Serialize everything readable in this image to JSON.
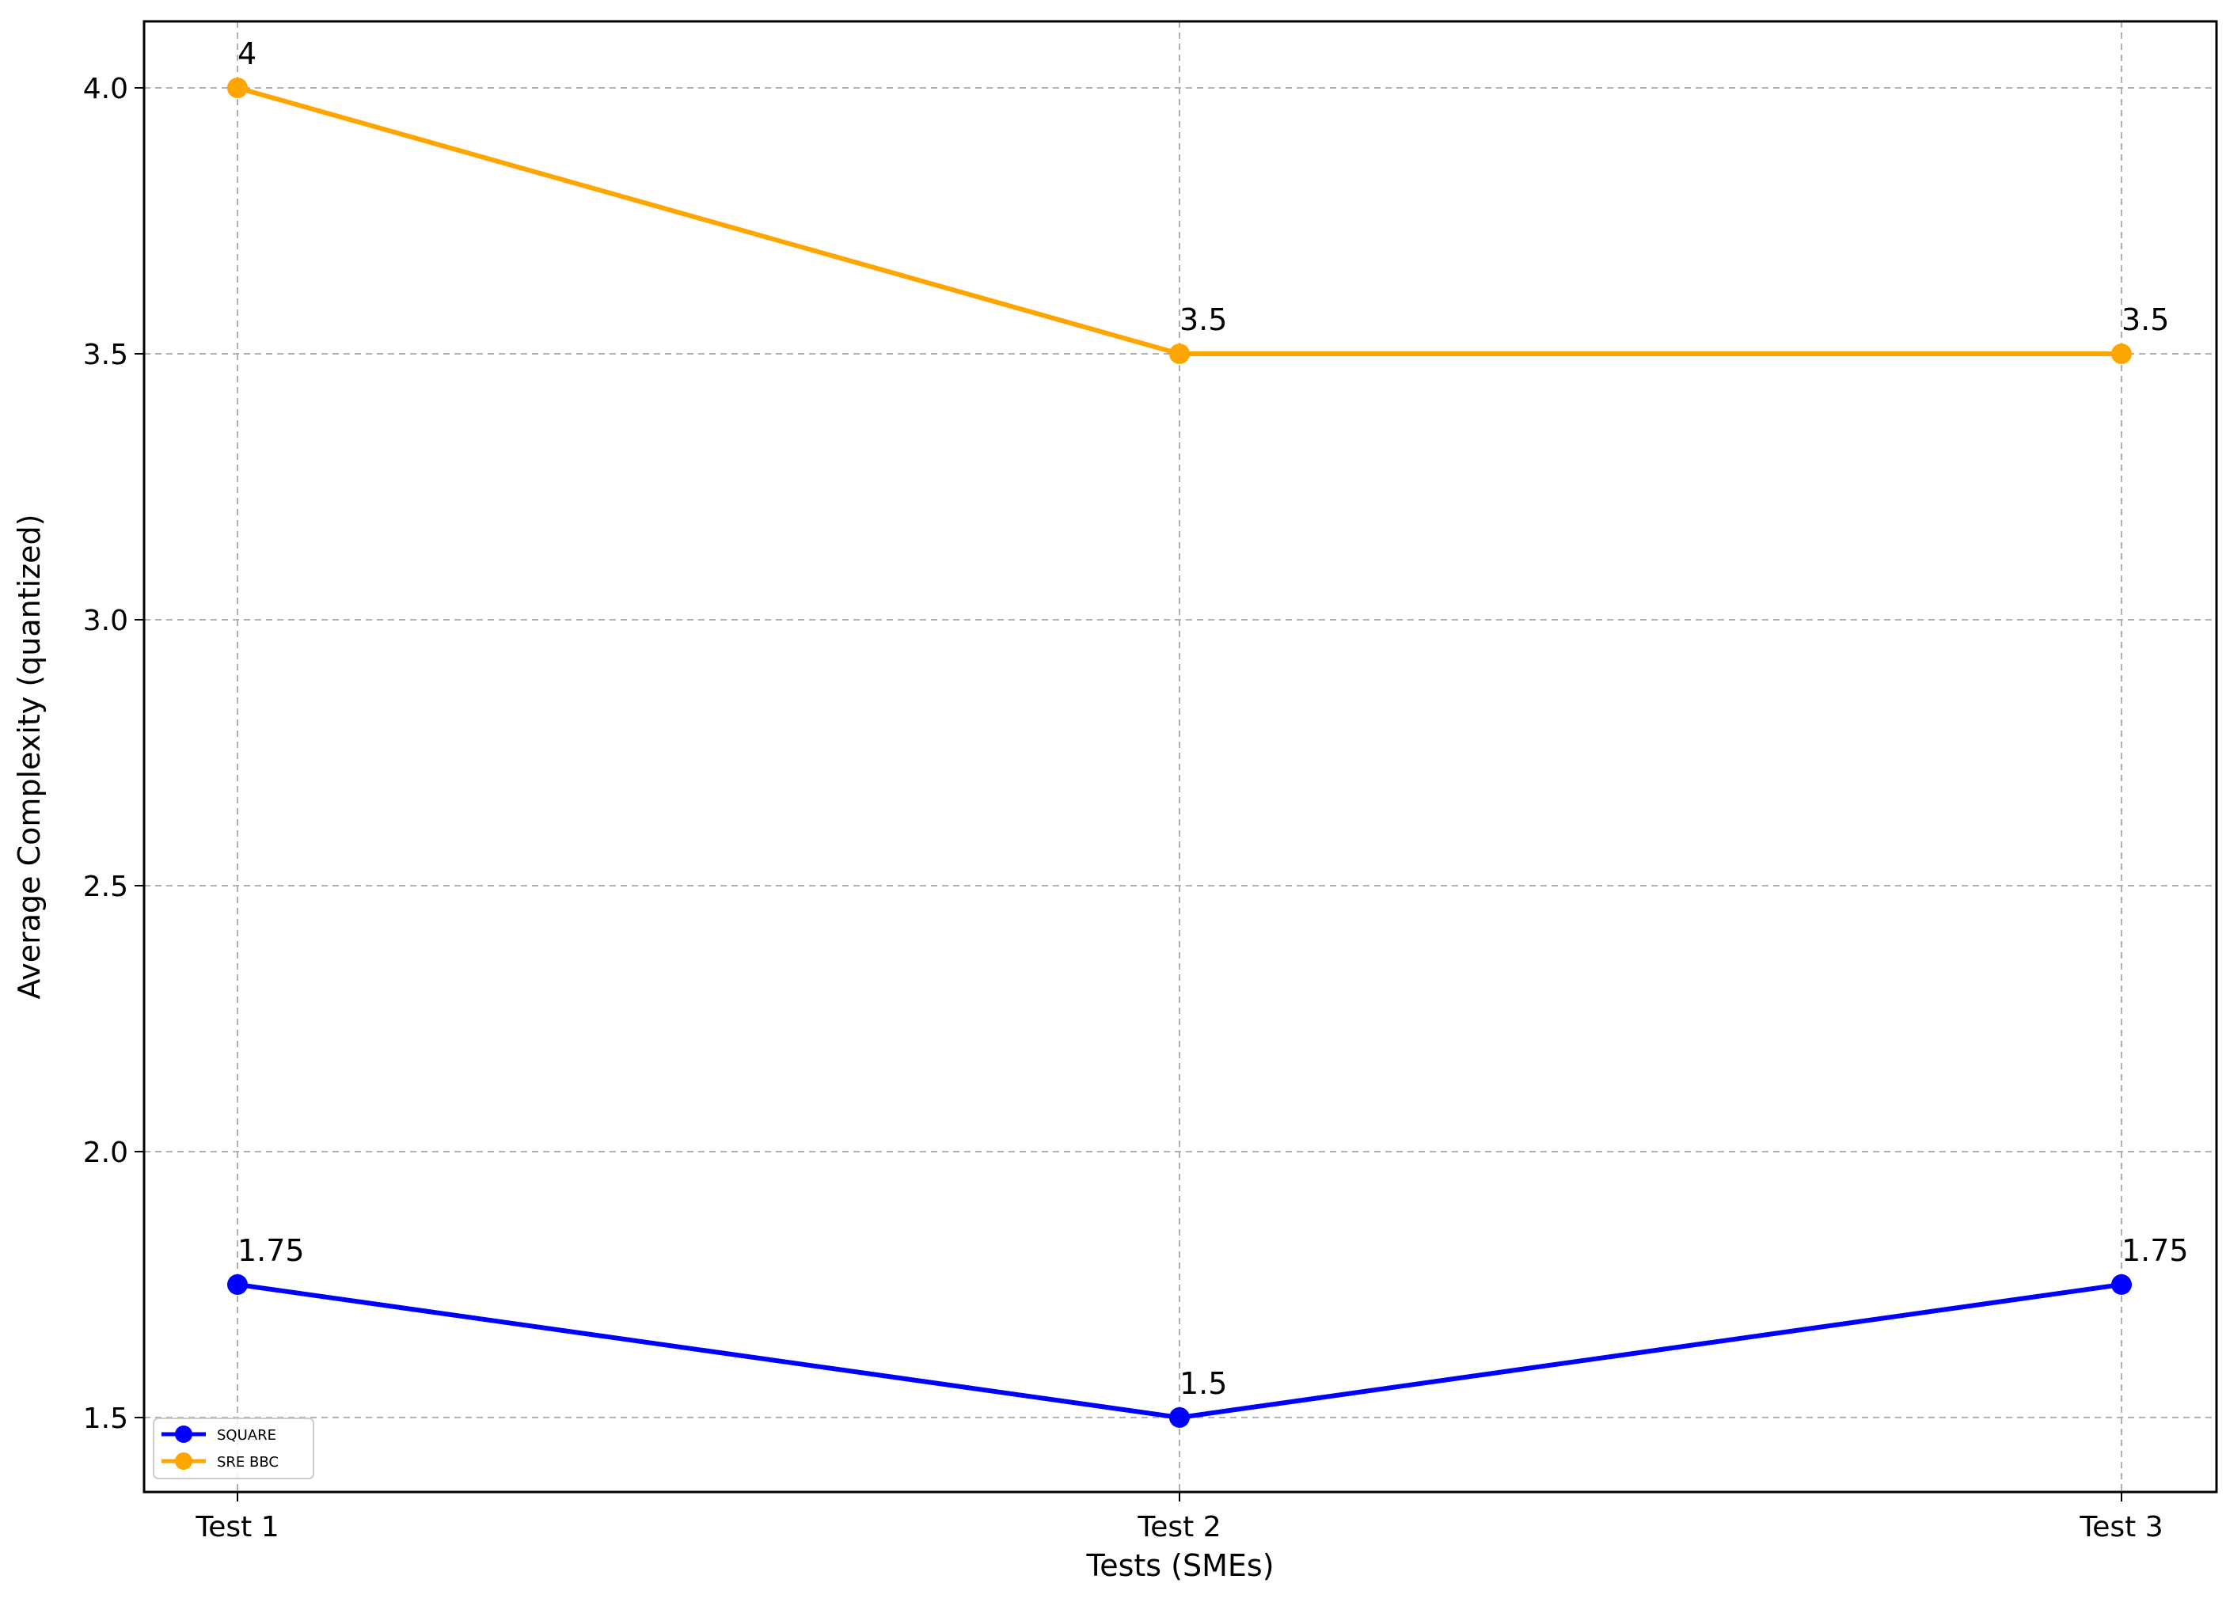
{
  "chart_data": {
    "type": "line",
    "categories": [
      "Test 1",
      "Test 2",
      "Test 3"
    ],
    "series": [
      {
        "name": "SQUARE",
        "values": [
          1.75,
          1.5,
          1.75
        ],
        "labels": [
          "1.75",
          "1.5",
          "1.75"
        ],
        "color": "#0000ff"
      },
      {
        "name": "SRE BBC",
        "values": [
          4,
          3.5,
          3.5
        ],
        "labels": [
          "4",
          "3.5",
          "3.5"
        ],
        "color": "#ffa500"
      }
    ],
    "xlabel": "Tests (SMEs)",
    "ylabel": "Average Complexity (quantized)",
    "ylim": [
      1.36,
      4.125
    ],
    "yticks": [
      1.5,
      2.0,
      2.5,
      3.0,
      3.5,
      4.0
    ],
    "ytick_labels": [
      "1.5",
      "2.0",
      "2.5",
      "3.0",
      "3.5",
      "4.0"
    ],
    "grid": true,
    "legend_position": "lower-left"
  }
}
